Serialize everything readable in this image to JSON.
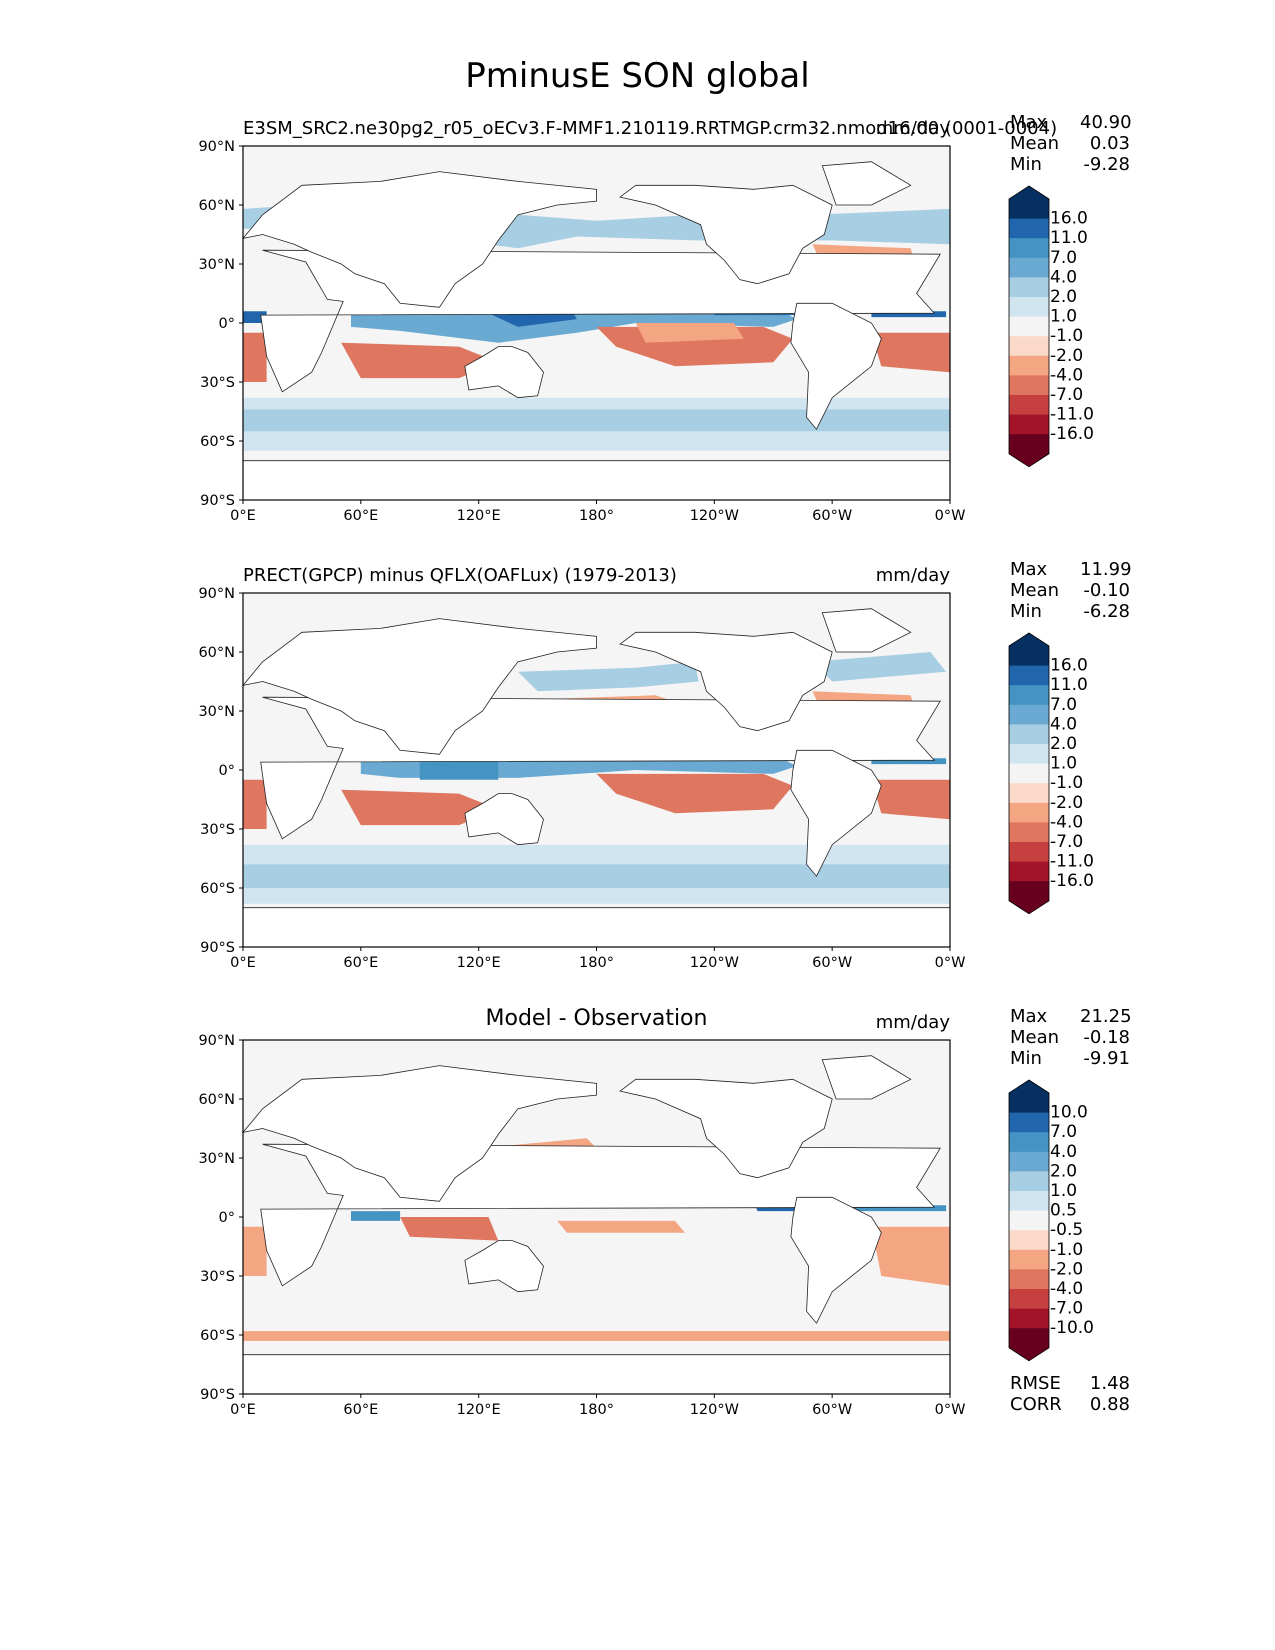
{
  "figure": {
    "title": "PminusE SON global"
  },
  "axes": {
    "lat_labels": [
      "90°N",
      "60°N",
      "30°N",
      "0°",
      "30°S",
      "60°S",
      "90°S"
    ],
    "lon_labels": [
      "0°E",
      "60°E",
      "120°E",
      "180°",
      "120°W",
      "60°W",
      "0°W"
    ]
  },
  "panels": [
    {
      "id": "model",
      "title": "E3SM_SRC2.ne30pg2_r05_oECv3.F-MMF1.210119.RRTMGP.crm32.nmod16.00 (0001-0004)",
      "units": "mm/day",
      "stats": {
        "max_label": "Max",
        "max": "40.90",
        "mean_label": "Mean",
        "mean": "0.03",
        "min_label": "Min",
        "min": "-9.28"
      },
      "colorbar": {
        "labels": [
          "16.0",
          "11.0",
          "7.0",
          "4.0",
          "2.0",
          "1.0",
          "-1.0",
          "-2.0",
          "-4.0",
          "-7.0",
          "-11.0",
          "-16.0"
        ]
      }
    },
    {
      "id": "obs",
      "title": "PRECT(GPCP) minus QFLX(OAFLux) (1979-2013)",
      "units": "mm/day",
      "stats": {
        "max_label": "Max",
        "max": "11.99",
        "mean_label": "Mean",
        "mean": "-0.10",
        "min_label": "Min",
        "min": "-6.28"
      },
      "colorbar": {
        "labels": [
          "16.0",
          "11.0",
          "7.0",
          "4.0",
          "2.0",
          "1.0",
          "-1.0",
          "-2.0",
          "-4.0",
          "-7.0",
          "-11.0",
          "-16.0"
        ]
      }
    },
    {
      "id": "diff",
      "title": "Model - Observation",
      "units": "mm/day",
      "stats": {
        "max_label": "Max",
        "max": "21.25",
        "mean_label": "Mean",
        "mean": "-0.18",
        "min_label": "Min",
        "min": "-9.91"
      },
      "colorbar": {
        "labels": [
          "10.0",
          "7.0",
          "4.0",
          "2.0",
          "1.0",
          "0.5",
          "-0.5",
          "-1.0",
          "-2.0",
          "-4.0",
          "-7.0",
          "-10.0"
        ]
      },
      "metrics": {
        "rmse_label": "RMSE",
        "rmse": "1.48",
        "corr_label": "CORR",
        "corr": "0.88"
      }
    }
  ],
  "colors": {
    "ramp": [
      "#053061",
      "#2166ac",
      "#4393c3",
      "#6aa9d2",
      "#a8cee4",
      "#d1e5f0",
      "#f4f4f4",
      "#fbd9c8",
      "#f4a582",
      "#de7660",
      "#c5403e",
      "#a3142a",
      "#67001f"
    ],
    "ocean_neutral": "#f5f5f5",
    "land": "#ffffff"
  }
}
